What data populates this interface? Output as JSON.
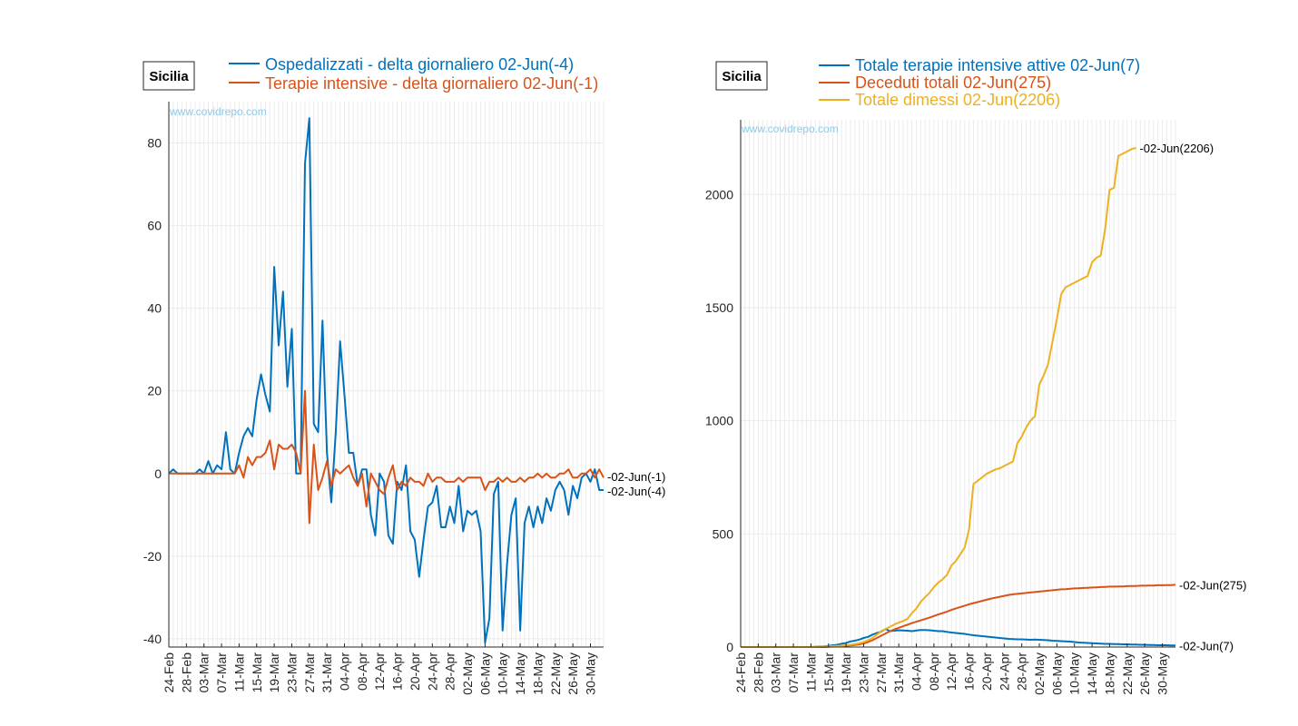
{
  "colors": {
    "blue": "#0072BD",
    "orange": "#D95319",
    "yellow": "#EDB120",
    "watermark": "#8ecae6",
    "grid": "#ebebeb"
  },
  "chart_data": [
    {
      "type": "line",
      "region_label": "Sicilia",
      "watermark": "www.covidrepo.com",
      "x_ticks": [
        "24-Feb",
        "28-Feb",
        "03-Mar",
        "07-Mar",
        "11-Mar",
        "15-Mar",
        "19-Mar",
        "23-Mar",
        "27-Mar",
        "31-Mar",
        "04-Apr",
        "08-Apr",
        "12-Apr",
        "16-Apr",
        "20-Apr",
        "24-Apr",
        "28-Apr",
        "02-May",
        "06-May",
        "10-May",
        "14-May",
        "18-May",
        "22-May",
        "26-May",
        "30-May"
      ],
      "y_ticks": [
        "-40",
        "-20",
        "0",
        "20",
        "40",
        "60",
        "80"
      ],
      "ylim": [
        -42,
        90
      ],
      "grid": true,
      "series": [
        {
          "name": "Ospedalizzati - delta giornaliero 02-Jun(-4)",
          "color": "#0072BD",
          "end_label": "02-Jun(-4)",
          "values": [
            0,
            1,
            0,
            0,
            0,
            0,
            0,
            1,
            0,
            3,
            0,
            2,
            1,
            10,
            1,
            0,
            5,
            9,
            11,
            9,
            18,
            24,
            19,
            15,
            50,
            31,
            44,
            21,
            35,
            0,
            0,
            75,
            86,
            12,
            10,
            37,
            5,
            -7,
            10,
            32,
            19,
            5,
            5,
            -3,
            1,
            1,
            -10,
            -15,
            0,
            -2,
            -15,
            -17,
            -2,
            -4,
            2,
            -14,
            -16,
            -25,
            -16,
            -8,
            -7,
            -3,
            -13,
            -13,
            -8,
            -12,
            -3,
            -14,
            -9,
            -10,
            -9,
            -14,
            -41,
            -35,
            -5,
            -2,
            -38,
            -22,
            -10,
            -6,
            -38,
            -12,
            -8,
            -13,
            -8,
            -12,
            -6,
            -9,
            -4,
            -2,
            -4,
            -10,
            -3,
            -6,
            -1,
            0,
            -2,
            1,
            -4,
            -4
          ]
        },
        {
          "name": "Terapie intensive - delta giornaliero 02-Jun(-1)",
          "color": "#D95319",
          "end_label": "02-Jun(-1)",
          "values": [
            0,
            0,
            0,
            0,
            0,
            0,
            0,
            0,
            0,
            0,
            0,
            0,
            0,
            0,
            0,
            0,
            2,
            -1,
            4,
            2,
            4,
            4,
            5,
            8,
            1,
            7,
            6,
            6,
            7,
            5,
            0,
            20,
            -12,
            7,
            -4,
            -1,
            3,
            -3,
            1,
            0,
            1,
            2,
            -1,
            -3,
            0,
            -8,
            0,
            -2,
            -4,
            -5,
            -1,
            2,
            -4,
            -2,
            -3,
            -1,
            -2,
            -2,
            -3,
            0,
            -2,
            -1,
            -1,
            -2,
            -2,
            -2,
            -1,
            -2,
            -1,
            -1,
            -1,
            -1,
            -4,
            -2,
            -2,
            -1,
            -2,
            -1,
            -2,
            -2,
            -1,
            -2,
            -1,
            -1,
            0,
            -1,
            0,
            -1,
            -1,
            0,
            0,
            1,
            -1,
            -1,
            0,
            0,
            1,
            -1,
            1,
            -1
          ]
        }
      ]
    },
    {
      "type": "line",
      "region_label": "Sicilia",
      "watermark": "www.covidrepo.com",
      "x_ticks": [
        "24-Feb",
        "28-Feb",
        "03-Mar",
        "07-Mar",
        "11-Mar",
        "15-Mar",
        "19-Mar",
        "23-Mar",
        "27-Mar",
        "31-Mar",
        "04-Apr",
        "08-Apr",
        "12-Apr",
        "16-Apr",
        "20-Apr",
        "24-Apr",
        "28-Apr",
        "02-May",
        "06-May",
        "10-May",
        "14-May",
        "18-May",
        "22-May",
        "26-May",
        "30-May"
      ],
      "y_ticks": [
        "0",
        "500",
        "1000",
        "1500",
        "2000"
      ],
      "ylim": [
        0,
        2330
      ],
      "grid": true,
      "series": [
        {
          "name": "Totale terapie intensive attive 02-Jun(7)",
          "color": "#0072BD",
          "end_label": "02-Jun(7)",
          "values": [
            0,
            0,
            0,
            0,
            0,
            0,
            0,
            0,
            0,
            0,
            0,
            0,
            0,
            0,
            0,
            0,
            0,
            1,
            2,
            3,
            5,
            8,
            10,
            15,
            18,
            25,
            28,
            33,
            40,
            45,
            55,
            62,
            68,
            80,
            70,
            72,
            74,
            73,
            72,
            70,
            73,
            75,
            75,
            74,
            72,
            70,
            70,
            67,
            64,
            62,
            60,
            58,
            55,
            52,
            50,
            48,
            46,
            44,
            42,
            40,
            38,
            36,
            35,
            34,
            34,
            33,
            32,
            33,
            32,
            31,
            30,
            28,
            27,
            26,
            25,
            24,
            22,
            20,
            19,
            18,
            17,
            16,
            15,
            14,
            14,
            13,
            13,
            12,
            12,
            11,
            11,
            10,
            10,
            9,
            9,
            8,
            8,
            8,
            7,
            7
          ]
        },
        {
          "name": "Deceduti totali 02-Jun(275)",
          "color": "#D95319",
          "end_label": "02-Jun(275)",
          "values": [
            0,
            0,
            0,
            0,
            0,
            0,
            0,
            0,
            0,
            0,
            0,
            0,
            0,
            0,
            0,
            0,
            0,
            0,
            0,
            0,
            1,
            2,
            2,
            3,
            5,
            7,
            9,
            12,
            16,
            22,
            30,
            40,
            50,
            60,
            70,
            78,
            85,
            92,
            99,
            106,
            112,
            118,
            124,
            130,
            137,
            144,
            150,
            157,
            164,
            171,
            177,
            183,
            189,
            194,
            199,
            204,
            209,
            214,
            218,
            222,
            226,
            230,
            233,
            235,
            237,
            239,
            241,
            243,
            245,
            247,
            249,
            251,
            253,
            255,
            256,
            258,
            259,
            260,
            261,
            262,
            263,
            264,
            265,
            266,
            267,
            267,
            268,
            268,
            269,
            270,
            270,
            271,
            271,
            272,
            272,
            273,
            273,
            274,
            274,
            275
          ]
        },
        {
          "name": "Totale dimessi 02-Jun(2206)",
          "color": "#EDB120",
          "end_label": "02-Jun(2206)",
          "values": [
            0,
            0,
            0,
            0,
            0,
            0,
            0,
            0,
            0,
            0,
            0,
            0,
            0,
            0,
            0,
            0,
            0,
            0,
            1,
            2,
            3,
            4,
            5,
            6,
            8,
            10,
            13,
            17,
            22,
            30,
            40,
            55,
            70,
            80,
            90,
            100,
            108,
            115,
            125,
            150,
            170,
            200,
            220,
            240,
            265,
            285,
            300,
            320,
            360,
            380,
            410,
            440,
            520,
            720,
            735,
            750,
            765,
            775,
            785,
            790,
            800,
            810,
            820,
            900,
            930,
            970,
            1000,
            1020,
            1160,
            1200,
            1250,
            1350,
            1450,
            1560,
            1590,
            1600,
            1610,
            1620,
            1630,
            1640,
            1700,
            1720,
            1730,
            1850,
            2020,
            2030,
            2170,
            2180,
            2190,
            2200,
            2206
          ]
        }
      ]
    }
  ]
}
